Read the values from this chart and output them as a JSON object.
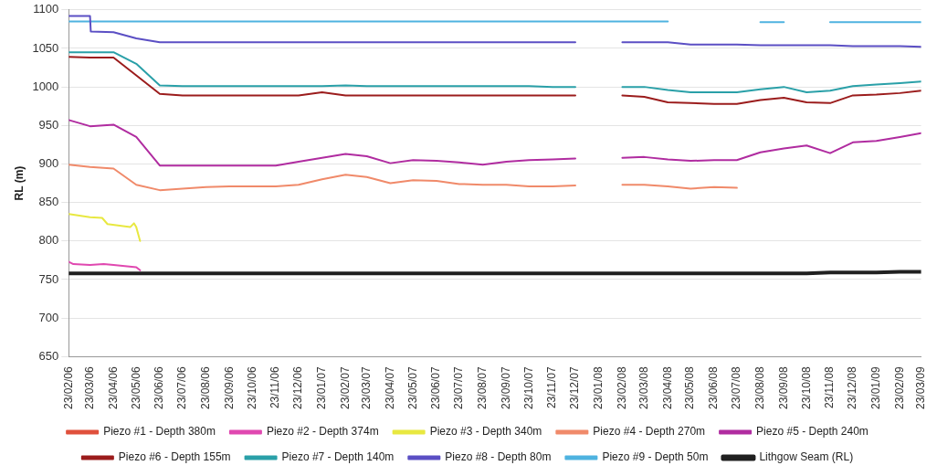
{
  "chart_data": {
    "type": "line",
    "ylabel": "RL (m)",
    "ylim": [
      650,
      1100
    ],
    "yticks": [
      650,
      700,
      750,
      800,
      850,
      900,
      950,
      1000,
      1050,
      1100
    ],
    "xlim": [
      "2006-02-23",
      "2009-03-23"
    ],
    "xticks": [
      {
        "value": "2006-02-23",
        "label": "23/02/06"
      },
      {
        "value": "2006-03-23",
        "label": "23/03/06"
      },
      {
        "value": "2006-04-23",
        "label": "23/04/06"
      },
      {
        "value": "2006-05-23",
        "label": "23/05/06"
      },
      {
        "value": "2006-06-23",
        "label": "23/06/06"
      },
      {
        "value": "2006-07-23",
        "label": "23/07/06"
      },
      {
        "value": "2006-08-23",
        "label": "23/08/06"
      },
      {
        "value": "2006-09-23",
        "label": "23/09/06"
      },
      {
        "value": "2006-10-23",
        "label": "23/10/06"
      },
      {
        "value": "2006-11-23",
        "label": "23/11/06"
      },
      {
        "value": "2006-12-23",
        "label": "23/12/06"
      },
      {
        "value": "2007-01-23",
        "label": "23/01/07"
      },
      {
        "value": "2007-02-23",
        "label": "23/02/07"
      },
      {
        "value": "2007-03-23",
        "label": "23/03/07"
      },
      {
        "value": "2007-04-23",
        "label": "23/04/07"
      },
      {
        "value": "2007-05-23",
        "label": "23/05/07"
      },
      {
        "value": "2007-06-23",
        "label": "23/06/07"
      },
      {
        "value": "2007-07-23",
        "label": "23/07/07"
      },
      {
        "value": "2007-08-23",
        "label": "23/08/07"
      },
      {
        "value": "2007-09-23",
        "label": "23/09/07"
      },
      {
        "value": "2007-10-23",
        "label": "23/10/07"
      },
      {
        "value": "2007-11-23",
        "label": "23/11/07"
      },
      {
        "value": "2007-12-23",
        "label": "23/12/07"
      },
      {
        "value": "2008-01-23",
        "label": "23/01/08"
      },
      {
        "value": "2008-02-23",
        "label": "23/02/08"
      },
      {
        "value": "2008-03-23",
        "label": "23/03/08"
      },
      {
        "value": "2008-04-23",
        "label": "23/04/08"
      },
      {
        "value": "2008-05-23",
        "label": "23/05/08"
      },
      {
        "value": "2008-06-23",
        "label": "23/06/08"
      },
      {
        "value": "2008-07-23",
        "label": "23/07/08"
      },
      {
        "value": "2008-08-23",
        "label": "23/08/08"
      },
      {
        "value": "2008-09-23",
        "label": "23/09/08"
      },
      {
        "value": "2008-10-23",
        "label": "23/10/08"
      },
      {
        "value": "2008-11-23",
        "label": "23/11/08"
      },
      {
        "value": "2008-12-23",
        "label": "23/12/08"
      },
      {
        "value": "2009-01-23",
        "label": "23/01/09"
      },
      {
        "value": "2009-02-23",
        "label": "23/02/09"
      },
      {
        "value": "2009-03-23",
        "label": "23/03/09"
      }
    ],
    "x": [
      "2006-02-23",
      "2006-03-23",
      "2006-04-23",
      "2006-05-23",
      "2006-06-23",
      "2006-07-23",
      "2006-08-23",
      "2006-09-23",
      "2006-10-23",
      "2006-11-23",
      "2006-12-23",
      "2007-01-23",
      "2007-02-23",
      "2007-03-23",
      "2007-04-23",
      "2007-05-23",
      "2007-06-23",
      "2007-07-23",
      "2007-08-23",
      "2007-09-23",
      "2007-10-23",
      "2007-11-23",
      "2007-12-23",
      "2008-01-23",
      "2008-02-23",
      "2008-03-23",
      "2008-04-23",
      "2008-05-23",
      "2008-06-23",
      "2008-07-23",
      "2008-08-23",
      "2008-09-23",
      "2008-10-23",
      "2008-11-23",
      "2008-12-23",
      "2009-01-23",
      "2009-02-23",
      "2009-03-23"
    ],
    "grid": "y",
    "legend": "bottom",
    "marker": "none",
    "line_style": "solid",
    "series": [
      {
        "name": "Piezo #1 - Depth 380m",
        "color": "#e0503c",
        "values": [
          null,
          null,
          null,
          null,
          null,
          null,
          null,
          null,
          null,
          null,
          null,
          null,
          null,
          null,
          null,
          null,
          null,
          null,
          null,
          null,
          null,
          null,
          null,
          null,
          null,
          null,
          null,
          null,
          null,
          null,
          null,
          null,
          null,
          null,
          null,
          null,
          null,
          null
        ]
      },
      {
        "name": "Piezo #2 - Depth 374m",
        "color": "#e048b0",
        "x": [
          "2006-02-23",
          "2006-03-01",
          "2006-03-23",
          "2006-04-10",
          "2006-04-23",
          "2006-05-23",
          "2006-05-28"
        ],
        "values": [
          773,
          770,
          769,
          770,
          769,
          766,
          762
        ]
      },
      {
        "name": "Piezo #3 - Depth 340m",
        "color": "#e8e840",
        "x": [
          "2006-02-23",
          "2006-03-23",
          "2006-04-08",
          "2006-04-15",
          "2006-05-15",
          "2006-05-20",
          "2006-05-23",
          "2006-05-28"
        ],
        "values": [
          835,
          831,
          830,
          822,
          818,
          823,
          818,
          800
        ]
      },
      {
        "name": "Piezo #4 - Depth 270m",
        "color": "#f08a6a",
        "values": [
          899,
          896,
          894,
          873,
          866,
          868,
          870,
          871,
          871,
          871,
          873,
          880,
          886,
          883,
          875,
          879,
          878,
          874,
          873,
          873,
          871,
          871,
          872,
          null,
          873,
          873,
          871,
          868,
          870,
          869,
          null,
          null,
          null,
          null,
          null,
          null,
          null,
          null
        ]
      },
      {
        "name": "Piezo #5 - Depth 240m",
        "color": "#b02ca0",
        "values": [
          957,
          949,
          951,
          935,
          898,
          898,
          898,
          898,
          898,
          898,
          903,
          908,
          913,
          910,
          901,
          905,
          904,
          902,
          899,
          903,
          905,
          906,
          907,
          null,
          908,
          909,
          906,
          904,
          905,
          905,
          915,
          920,
          924,
          914,
          928,
          930,
          935,
          940
        ]
      },
      {
        "name": "Piezo #6 - Depth 155m",
        "color": "#9b1c1c",
        "values": [
          1039,
          1038,
          1038,
          1015,
          991,
          989,
          989,
          989,
          989,
          989,
          989,
          993,
          989,
          989,
          989,
          989,
          989,
          989,
          989,
          989,
          989,
          989,
          989,
          null,
          989,
          987,
          980,
          979,
          978,
          978,
          983,
          986,
          980,
          979,
          989,
          990,
          992,
          995
        ]
      },
      {
        "name": "Piezo #7 - Depth 140m",
        "color": "#2aa0a8",
        "values": [
          1045,
          1045,
          1045,
          1030,
          1002,
          1001,
          1001,
          1001,
          1001,
          1001,
          1001,
          1001,
          1002,
          1001,
          1001,
          1001,
          1001,
          1001,
          1001,
          1001,
          1001,
          1000,
          1000,
          null,
          1000,
          1000,
          996,
          993,
          993,
          993,
          997,
          1000,
          993,
          995,
          1001,
          1003,
          1005,
          1007
        ]
      },
      {
        "name": "Piezo #8 - Depth 80m",
        "color": "#5b4fc4",
        "x": [
          "2006-02-23",
          "2006-03-23",
          "2006-03-24",
          "2006-04-23",
          "2006-05-23",
          "2006-06-23",
          "2006-07-23",
          "2006-08-23",
          "2006-09-23",
          "2006-10-23",
          "2006-11-23",
          "2006-12-23",
          "2007-01-23",
          "2007-02-23",
          "2007-03-23",
          "2007-04-23",
          "2007-05-23",
          "2007-06-23",
          "2007-07-23",
          "2007-08-23",
          "2007-09-23",
          "2007-10-23",
          "2007-11-23",
          "2007-12-23",
          "2008-01-23",
          "2008-02-23",
          "2008-03-23",
          "2008-04-23",
          "2008-05-23",
          "2008-06-23",
          "2008-07-23",
          "2008-08-23",
          "2008-09-23",
          "2008-10-23",
          "2008-11-23",
          "2008-12-23",
          "2009-01-23",
          "2009-02-23",
          "2009-03-23"
        ],
        "values": [
          1092,
          1092,
          1072,
          1071,
          1063,
          1058,
          1058,
          1058,
          1058,
          1058,
          1058,
          1058,
          1058,
          1058,
          1058,
          1058,
          1058,
          1058,
          1058,
          1058,
          1058,
          1058,
          1058,
          1058,
          null,
          1058,
          1058,
          1058,
          1055,
          1055,
          1055,
          1054,
          1054,
          1054,
          1054,
          1053,
          1053,
          1053,
          1052
        ]
      },
      {
        "name": "Piezo #9 - Depth 50m",
        "color": "#4fb3e0",
        "values": [
          1085,
          1085,
          1085,
          1085,
          1085,
          1085,
          1085,
          1085,
          1085,
          1085,
          1085,
          1085,
          1085,
          1085,
          1085,
          1085,
          1085,
          1085,
          1085,
          1085,
          1085,
          1085,
          1085,
          1085,
          1085,
          1085,
          1085,
          null,
          null,
          null,
          1084,
          1084,
          null,
          1084,
          1084,
          1084,
          1084,
          1084
        ]
      },
      {
        "name": "Lithgow Seam (RL)",
        "color": "#202020",
        "values": [
          758,
          758,
          758,
          758,
          758,
          758,
          758,
          758,
          758,
          758,
          758,
          758,
          758,
          758,
          758,
          758,
          758,
          758,
          758,
          758,
          758,
          758,
          758,
          758,
          758,
          758,
          758,
          758,
          758,
          758,
          758,
          758,
          758,
          759,
          759,
          759,
          760,
          760
        ]
      }
    ]
  }
}
